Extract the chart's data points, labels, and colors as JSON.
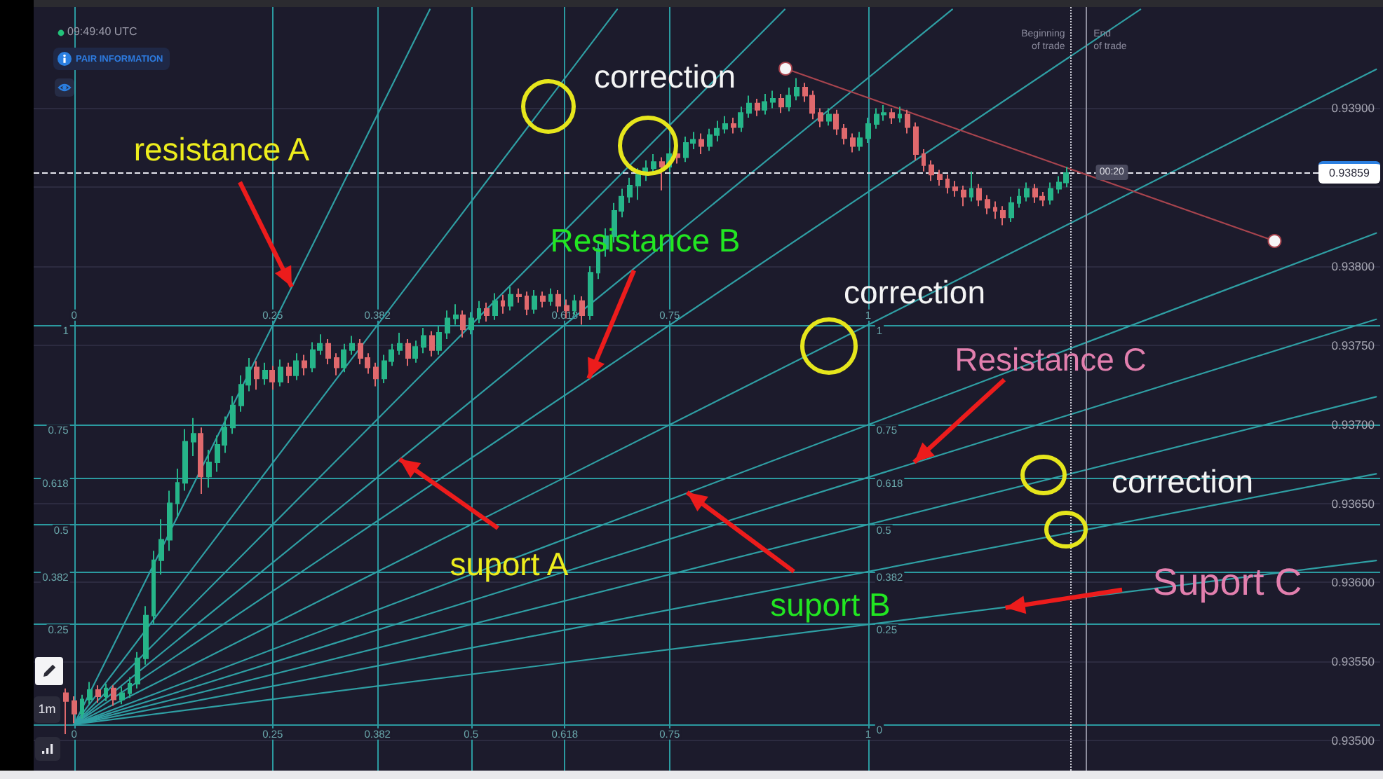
{
  "chart_data": {
    "type": "candlestick",
    "x": [
      -0.01,
      0,
      0.01,
      0.02,
      0.03,
      0.04,
      0.05,
      0.06,
      0.07,
      0.08,
      0.09,
      0.1,
      0.11,
      0.12,
      0.13,
      0.14,
      0.15,
      0.16,
      0.17,
      0.18,
      0.19,
      0.2,
      0.21,
      0.22,
      0.23,
      0.24,
      0.25,
      0.26,
      0.27,
      0.28,
      0.29,
      0.3,
      0.31,
      0.32,
      0.33,
      0.34,
      0.35,
      0.36,
      0.37,
      0.38,
      0.39,
      0.4,
      0.41,
      0.42,
      0.43,
      0.44,
      0.45,
      0.46,
      0.47,
      0.48,
      0.49,
      0.5,
      0.51,
      0.52,
      0.53,
      0.54,
      0.55,
      0.56,
      0.57,
      0.58,
      0.59,
      0.6,
      0.61,
      0.62,
      0.63,
      0.64,
      0.65,
      0.66,
      0.67,
      0.68,
      0.69,
      0.7,
      0.71,
      0.72,
      0.73,
      0.74,
      0.75,
      0.76,
      0.77,
      0.78,
      0.79,
      0.8,
      0.81,
      0.82,
      0.83,
      0.84,
      0.85,
      0.86,
      0.87,
      0.88,
      0.89,
      0.9,
      0.91,
      0.92,
      0.93,
      0.94,
      0.95,
      0.96,
      0.97,
      0.98,
      0.99,
      1,
      1.01,
      1.02,
      1.03,
      1.04,
      1.05,
      1.06,
      1.07,
      1.08,
      1.09,
      1.1,
      1.11,
      1.12,
      1.13,
      1.14,
      1.15,
      1.16,
      1.17,
      1.18,
      1.19,
      1.2,
      1.21,
      1.22,
      1.23,
      1.24,
      1.25
    ],
    "ohlc": [
      [
        0.9353,
        0.93533,
        0.93504,
        0.93525
      ],
      [
        0.93525,
        0.93528,
        0.93511,
        0.93517
      ],
      [
        0.93517,
        0.93529,
        0.93514,
        0.93526
      ],
      [
        0.93526,
        0.93537,
        0.93523,
        0.93532
      ],
      [
        0.93532,
        0.93535,
        0.93524,
        0.93528
      ],
      [
        0.93528,
        0.93536,
        0.93525,
        0.93533
      ],
      [
        0.93533,
        0.93535,
        0.93522,
        0.93526
      ],
      [
        0.93526,
        0.93534,
        0.93523,
        0.9353
      ],
      [
        0.9353,
        0.9354,
        0.93527,
        0.93536
      ],
      [
        0.93536,
        0.93556,
        0.93533,
        0.93552
      ],
      [
        0.93552,
        0.93585,
        0.93548,
        0.93579
      ],
      [
        0.93579,
        0.9362,
        0.93574,
        0.93614
      ],
      [
        0.93614,
        0.9364,
        0.93605,
        0.93627
      ],
      [
        0.93627,
        0.93658,
        0.9362,
        0.9365
      ],
      [
        0.9365,
        0.93672,
        0.93641,
        0.93663
      ],
      [
        0.93663,
        0.93697,
        0.93658,
        0.93689
      ],
      [
        0.93689,
        0.93704,
        0.9368,
        0.93694
      ],
      [
        0.93694,
        0.93698,
        0.93656,
        0.93667
      ],
      [
        0.93667,
        0.93684,
        0.9366,
        0.93676
      ],
      [
        0.93676,
        0.93693,
        0.9367,
        0.93687
      ],
      [
        0.93687,
        0.93705,
        0.93682,
        0.93698
      ],
      [
        0.93698,
        0.93718,
        0.93694,
        0.93712
      ],
      [
        0.93712,
        0.93731,
        0.93708,
        0.93725
      ],
      [
        0.93725,
        0.93742,
        0.93721,
        0.93736
      ],
      [
        0.93736,
        0.9374,
        0.93722,
        0.93729
      ],
      [
        0.93729,
        0.93739,
        0.93725,
        0.93734
      ],
      [
        0.93734,
        0.93737,
        0.93722,
        0.93727
      ],
      [
        0.93727,
        0.93741,
        0.93724,
        0.93736
      ],
      [
        0.93736,
        0.93739,
        0.93726,
        0.93731
      ],
      [
        0.93731,
        0.93745,
        0.93728,
        0.9374
      ],
      [
        0.9374,
        0.93744,
        0.93731,
        0.93736
      ],
      [
        0.93736,
        0.93752,
        0.93733,
        0.93747
      ],
      [
        0.93747,
        0.93757,
        0.93744,
        0.93751
      ],
      [
        0.93751,
        0.93754,
        0.93738,
        0.93742
      ],
      [
        0.93742,
        0.93745,
        0.93731,
        0.93736
      ],
      [
        0.93736,
        0.93751,
        0.93733,
        0.93747
      ],
      [
        0.93747,
        0.93756,
        0.93744,
        0.93751
      ],
      [
        0.93751,
        0.93754,
        0.93738,
        0.93742
      ],
      [
        0.93742,
        0.93745,
        0.93732,
        0.93736
      ],
      [
        0.93736,
        0.93739,
        0.93724,
        0.93729
      ],
      [
        0.93729,
        0.93744,
        0.93726,
        0.9374
      ],
      [
        0.9374,
        0.93751,
        0.93737,
        0.93747
      ],
      [
        0.93747,
        0.93758,
        0.93744,
        0.93751
      ],
      [
        0.93751,
        0.93754,
        0.93737,
        0.93742
      ],
      [
        0.93742,
        0.93753,
        0.93739,
        0.93749
      ],
      [
        0.93749,
        0.93761,
        0.93745,
        0.93756
      ],
      [
        0.93756,
        0.93759,
        0.93743,
        0.93747
      ],
      [
        0.93747,
        0.93762,
        0.93744,
        0.93758
      ],
      [
        0.93758,
        0.93772,
        0.93754,
        0.93767
      ],
      [
        0.93767,
        0.93776,
        0.93763,
        0.93769
      ],
      [
        0.93769,
        0.93772,
        0.93755,
        0.9376
      ],
      [
        0.9376,
        0.93771,
        0.93757,
        0.93767
      ],
      [
        0.93767,
        0.93778,
        0.93764,
        0.93773
      ],
      [
        0.93773,
        0.93777,
        0.93765,
        0.93769
      ],
      [
        0.93769,
        0.93783,
        0.93766,
        0.93778
      ],
      [
        0.93778,
        0.93782,
        0.9377,
        0.93775
      ],
      [
        0.93775,
        0.93787,
        0.93772,
        0.93782
      ],
      [
        0.93782,
        0.93786,
        0.93777,
        0.93781
      ],
      [
        0.93781,
        0.93784,
        0.93769,
        0.93773
      ],
      [
        0.93773,
        0.93785,
        0.9377,
        0.93781
      ],
      [
        0.93781,
        0.93784,
        0.93774,
        0.93778
      ],
      [
        0.93778,
        0.93786,
        0.93775,
        0.93782
      ],
      [
        0.93782,
        0.93785,
        0.93771,
        0.93775
      ],
      [
        0.93775,
        0.93779,
        0.93767,
        0.93772
      ],
      [
        0.93772,
        0.93782,
        0.93769,
        0.93778
      ],
      [
        0.93778,
        0.93781,
        0.93763,
        0.93769
      ],
      [
        0.93769,
        0.938,
        0.93766,
        0.93796
      ],
      [
        0.93796,
        0.93816,
        0.93792,
        0.93811
      ],
      [
        0.93811,
        0.93824,
        0.93806,
        0.93819
      ],
      [
        0.93819,
        0.9384,
        0.93815,
        0.93835
      ],
      [
        0.93835,
        0.93849,
        0.93831,
        0.93844
      ],
      [
        0.93844,
        0.93856,
        0.9384,
        0.93851
      ],
      [
        0.93851,
        0.93862,
        0.93842,
        0.93858
      ],
      [
        0.93858,
        0.93867,
        0.93854,
        0.93862
      ],
      [
        0.93862,
        0.93871,
        0.93858,
        0.93866
      ],
      [
        0.93866,
        0.93869,
        0.93848,
        0.93863
      ],
      [
        0.93863,
        0.93875,
        0.9386,
        0.93871
      ],
      [
        0.93871,
        0.93874,
        0.93865,
        0.93869
      ],
      [
        0.93869,
        0.93882,
        0.93866,
        0.93878
      ],
      [
        0.93878,
        0.93885,
        0.93874,
        0.9388
      ],
      [
        0.9388,
        0.93884,
        0.93871,
        0.93876
      ],
      [
        0.93876,
        0.93887,
        0.93873,
        0.93883
      ],
      [
        0.93883,
        0.93892,
        0.93879,
        0.93887
      ],
      [
        0.93887,
        0.93895,
        0.93884,
        0.9389
      ],
      [
        0.9389,
        0.93894,
        0.93884,
        0.93888
      ],
      [
        0.93888,
        0.93901,
        0.93885,
        0.93897
      ],
      [
        0.93897,
        0.93908,
        0.93894,
        0.93903
      ],
      [
        0.93903,
        0.93906,
        0.93895,
        0.93899
      ],
      [
        0.93899,
        0.93909,
        0.93896,
        0.93904
      ],
      [
        0.93904,
        0.93911,
        0.939,
        0.93906
      ],
      [
        0.93906,
        0.93909,
        0.93897,
        0.93901
      ],
      [
        0.93901,
        0.93913,
        0.93898,
        0.93908
      ],
      [
        0.93908,
        0.93919,
        0.93905,
        0.93913
      ],
      [
        0.93913,
        0.93916,
        0.93904,
        0.93908
      ],
      [
        0.93908,
        0.93911,
        0.93893,
        0.93897
      ],
      [
        0.93897,
        0.939,
        0.93888,
        0.93892
      ],
      [
        0.93892,
        0.939,
        0.93889,
        0.93896
      ],
      [
        0.93896,
        0.93899,
        0.93883,
        0.93887
      ],
      [
        0.93887,
        0.9389,
        0.93877,
        0.93881
      ],
      [
        0.93881,
        0.93884,
        0.93872,
        0.93876
      ],
      [
        0.93876,
        0.93885,
        0.93873,
        0.93881
      ],
      [
        0.93881,
        0.93894,
        0.93878,
        0.9389
      ],
      [
        0.9389,
        0.939,
        0.93887,
        0.93896
      ],
      [
        0.93896,
        0.93902,
        0.93892,
        0.93897
      ],
      [
        0.93897,
        0.939,
        0.9389,
        0.93894
      ],
      [
        0.93894,
        0.93901,
        0.93891,
        0.93896
      ],
      [
        0.93896,
        0.93899,
        0.93884,
        0.93888
      ],
      [
        0.93888,
        0.93891,
        0.93867,
        0.93871
      ],
      [
        0.93871,
        0.93874,
        0.9386,
        0.93864
      ],
      [
        0.93864,
        0.93867,
        0.93854,
        0.93858
      ],
      [
        0.93858,
        0.93861,
        0.93851,
        0.93855
      ],
      [
        0.93855,
        0.93858,
        0.93846,
        0.9385
      ],
      [
        0.9385,
        0.93854,
        0.93844,
        0.93848
      ],
      [
        0.93848,
        0.93851,
        0.93838,
        0.93844
      ],
      [
        0.93844,
        0.9386,
        0.93841,
        0.93849
      ],
      [
        0.93849,
        0.93852,
        0.93838,
        0.93842
      ],
      [
        0.93842,
        0.93845,
        0.93833,
        0.93837
      ],
      [
        0.93837,
        0.93841,
        0.9383,
        0.93835
      ],
      [
        0.93835,
        0.93838,
        0.93826,
        0.93831
      ],
      [
        0.93831,
        0.93844,
        0.93828,
        0.9384
      ],
      [
        0.9384,
        0.93849,
        0.93837,
        0.93844
      ],
      [
        0.93844,
        0.93853,
        0.93841,
        0.93849
      ],
      [
        0.93849,
        0.93852,
        0.9384,
        0.93844
      ],
      [
        0.93844,
        0.93847,
        0.93838,
        0.93842
      ],
      [
        0.93842,
        0.93853,
        0.93839,
        0.93849
      ],
      [
        0.93849,
        0.93857,
        0.93846,
        0.93853
      ],
      [
        0.93853,
        0.93863,
        0.9385,
        0.93859
      ]
    ],
    "colors": [
      "#e0696d",
      "#e0696d",
      "#26b589",
      "#26b589",
      "#e0696d",
      "#26b589",
      "#e0696d",
      "#26b589",
      "#26b589",
      "#26b589",
      "#26b589",
      "#26b589",
      "#26b589",
      "#26b589",
      "#26b589",
      "#26b589",
      "#26b589",
      "#e0696d",
      "#26b589",
      "#26b589",
      "#26b589",
      "#26b589",
      "#26b589",
      "#26b589",
      "#e0696d",
      "#26b589",
      "#e0696d",
      "#26b589",
      "#e0696d",
      "#26b589",
      "#e0696d",
      "#26b589",
      "#26b589",
      "#e0696d",
      "#e0696d",
      "#26b589",
      "#26b589",
      "#e0696d",
      "#e0696d",
      "#e0696d",
      "#26b589",
      "#26b589",
      "#26b589",
      "#e0696d",
      "#26b589",
      "#26b589",
      "#e0696d",
      "#26b589",
      "#26b589",
      "#26b589",
      "#e0696d",
      "#26b589",
      "#26b589",
      "#e0696d",
      "#26b589",
      "#e0696d",
      "#26b589",
      "#e0696d",
      "#e0696d",
      "#26b589",
      "#e0696d",
      "#26b589",
      "#e0696d",
      "#e0696d",
      "#26b589",
      "#e0696d",
      "#26b589",
      "#26b589",
      "#26b589",
      "#26b589",
      "#26b589",
      "#26b589",
      "#26b589",
      "#26b589",
      "#26b589",
      "#e0696d",
      "#26b589",
      "#e0696d",
      "#26b589",
      "#26b589",
      "#e0696d",
      "#26b589",
      "#26b589",
      "#26b589",
      "#e0696d",
      "#26b589",
      "#26b589",
      "#e0696d",
      "#26b589",
      "#26b589",
      "#e0696d",
      "#26b589",
      "#26b589",
      "#e0696d",
      "#e0696d",
      "#e0696d",
      "#26b589",
      "#e0696d",
      "#e0696d",
      "#e0696d",
      "#26b589",
      "#26b589",
      "#26b589",
      "#26b589",
      "#e0696d",
      "#26b589",
      "#e0696d",
      "#e0696d",
      "#e0696d",
      "#e0696d",
      "#e0696d",
      "#e0696d",
      "#e0696d",
      "#e0696d",
      "#26b589",
      "#e0696d",
      "#e0696d",
      "#e0696d",
      "#e0696d",
      "#26b589",
      "#26b589",
      "#26b589",
      "#e0696d",
      "#e0696d",
      "#26b589",
      "#26b589",
      "#26b589"
    ],
    "series": [
      {
        "type": "line",
        "axis": "y2",
        "color": "#2f9fa4",
        "x": [
          0,
          1.64
        ],
        "values": [
          0,
          0.41
        ]
      },
      {
        "type": "line",
        "axis": "y2",
        "color": "#2f9fa4",
        "x": [
          0,
          1.64
        ],
        "values": [
          0,
          0.627
        ]
      },
      {
        "type": "line",
        "axis": "y2",
        "color": "#2f9fa4",
        "x": [
          0,
          1.64
        ],
        "values": [
          0,
          0.82
        ]
      },
      {
        "type": "line",
        "axis": "y2",
        "color": "#2f9fa4",
        "x": [
          0,
          1.64
        ],
        "values": [
          0,
          1.014
        ]
      },
      {
        "type": "line",
        "axis": "y2",
        "color": "#2f9fa4",
        "x": [
          0,
          1.64
        ],
        "values": [
          0,
          1.23
        ]
      },
      {
        "type": "line",
        "axis": "y2",
        "color": "#2f9fa4",
        "x": [
          0,
          1.64
        ],
        "values": [
          0,
          1.64
        ]
      },
      {
        "type": "line",
        "axis": "y2",
        "color": "#2f9fa4",
        "x": [
          0,
          1.343
        ],
        "values": [
          0,
          1.79
        ]
      },
      {
        "type": "line",
        "axis": "y2",
        "color": "#2f9fa4",
        "x": [
          0,
          1.106
        ],
        "values": [
          0,
          1.79
        ]
      },
      {
        "type": "line",
        "axis": "y2",
        "color": "#2f9fa4",
        "x": [
          0,
          0.895
        ],
        "values": [
          0,
          1.79
        ]
      },
      {
        "type": "line",
        "axis": "y2",
        "color": "#2f9fa4",
        "x": [
          0,
          0.684
        ],
        "values": [
          0,
          1.79
        ]
      },
      {
        "type": "line",
        "axis": "y2",
        "color": "#2f9fa4",
        "x": [
          0,
          0.448
        ],
        "values": [
          0,
          1.79
        ]
      },
      {
        "type": "line",
        "color": "#a8444e",
        "marker": "circle",
        "x": [
          0.896,
          1.512
        ],
        "values": [
          0.93925,
          0.93816
        ]
      }
    ],
    "xlim": [
      -0.051,
      1.645
    ],
    "xticks": [
      0,
      0.25,
      0.382,
      0.5,
      0.618,
      0.75,
      1
    ],
    "x2lim": [
      -0.051,
      1.645
    ],
    "x2ticks": [
      0,
      0.25,
      0.382,
      0.618,
      0.75,
      1
    ],
    "ylim": [
      0.93481,
      0.93964
    ],
    "yticks": [
      {
        "value": 0.935,
        "label": "0.93500"
      },
      {
        "value": 0.9355,
        "label": "0.93550"
      },
      {
        "value": 0.936,
        "label": "0.93600"
      },
      {
        "value": 0.9365,
        "label": "0.93650"
      },
      {
        "value": 0.937,
        "label": "0.93700"
      },
      {
        "value": 0.9375,
        "label": "0.93750"
      },
      {
        "value": 0.938,
        "label": "0.93800"
      },
      {
        "value": 0.9385,
        "label": null
      },
      {
        "value": 0.939,
        "label": "0.93900"
      }
    ],
    "y2lim": [
      -0.116,
      1.796
    ],
    "y2ticks": [
      {
        "value": 0,
        "label": null
      },
      0.25,
      0.382,
      0.5,
      0.618,
      0.75,
      1
    ],
    "y3lim": [
      -0.116,
      1.796
    ],
    "y3ticks": [
      0,
      0.25,
      0.382,
      0.5,
      0.618,
      0.75,
      1
    ],
    "grid": true,
    "ref_lines": [
      {
        "axis": "y",
        "value": 0.93859,
        "label": "0.93859",
        "color": "#e6e6ee",
        "line_style": "dashed"
      },
      {
        "axis": "x",
        "value": 1.255,
        "label": "Beginning of trade",
        "color": "#d0d0da",
        "line_style": "dotted"
      },
      {
        "axis": "x",
        "value": 1.275,
        "label": "End of trade",
        "color": "#8e8e9e"
      }
    ],
    "annotations": [
      {
        "text": "resistance A",
        "x": 0.274,
        "y": 0.93787
      },
      "correction",
      {
        "text": "Resistance B",
        "x": 0.648,
        "y": 0.93729
      },
      "correction",
      {
        "text": "Resistance C",
        "x": 1.058,
        "y": 0.93676
      },
      "correction",
      {
        "text": "suport A",
        "x": 0.41,
        "y": 0.93678
      },
      {
        "text": "suport B",
        "x": 0.772,
        "y": 0.93657
      },
      {
        "text": "Suport C",
        "x": 1.173,
        "y": 0.93584
      },
      "09:49:40 UTC",
      "PAIR INFORMATION",
      "1m",
      {
        "text": "00:20",
        "x": 1.307,
        "y": 0.93859
      }
    ]
  }
}
